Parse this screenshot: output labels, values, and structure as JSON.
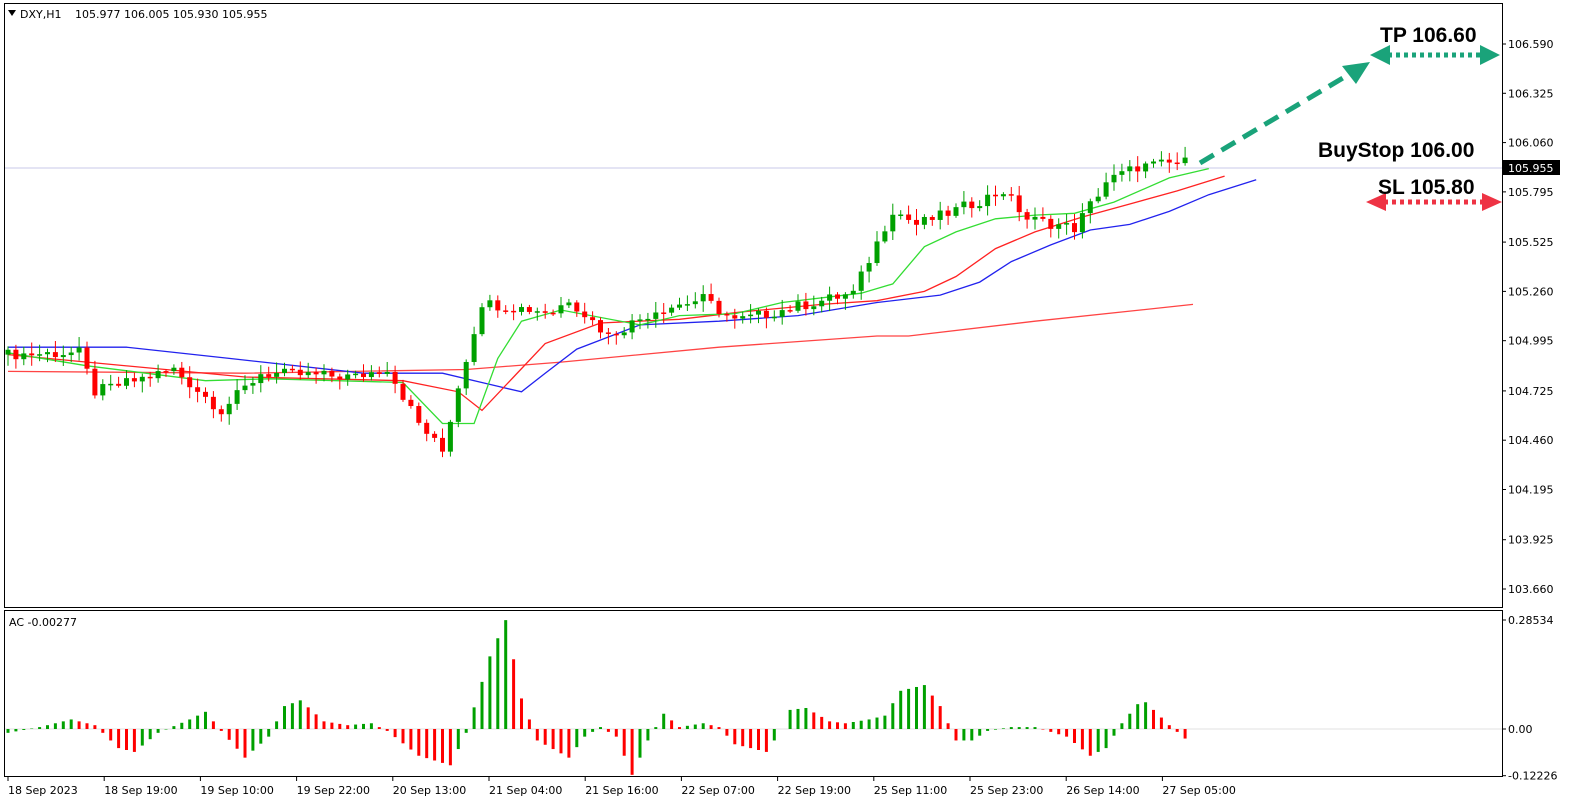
{
  "header": {
    "symbol": "DXY,H1",
    "ohlc": "105.977 106.005 105.930 105.955"
  },
  "current_price": "105.955",
  "annotations": {
    "tp": "TP 106.60",
    "buystop": "BuyStop 106.00",
    "sl": "SL 105.80"
  },
  "colors": {
    "bull": "#00a000",
    "bear": "#ff0000",
    "ma_fast": "#33dd33",
    "ma_mid": "#ff2222",
    "ma_slow": "#2222ee",
    "ma_long": "#ff4444",
    "tp_arrow": "#1aa37a",
    "sl_arrow": "#ee3344"
  },
  "chart_data": [
    {
      "type": "candlestick",
      "title": "DXY,H1",
      "y_ticks": [
        "106.590",
        "106.325",
        "106.060",
        "105.795",
        "105.525",
        "105.260",
        "104.995",
        "104.725",
        "104.460",
        "104.195",
        "103.925",
        "103.660"
      ],
      "ylim": [
        103.56,
        106.78
      ],
      "x_ticks": [
        "18 Sep 2023",
        "18 Sep 19:00",
        "19 Sep 10:00",
        "19 Sep 22:00",
        "20 Sep 13:00",
        "21 Sep 04:00",
        "21 Sep 16:00",
        "22 Sep 07:00",
        "22 Sep 19:00",
        "25 Sep 11:00",
        "25 Sep 23:00",
        "26 Sep 14:00",
        "27 Sep 05:00"
      ],
      "bar_count": 150,
      "close_path": [
        [
          0,
          104.92
        ],
        [
          10,
          104.93
        ],
        [
          12,
          104.72
        ],
        [
          22,
          104.84
        ],
        [
          28,
          104.62
        ],
        [
          33,
          104.82
        ],
        [
          45,
          104.8
        ],
        [
          49,
          104.85
        ],
        [
          53,
          104.55
        ],
        [
          56,
          104.4
        ],
        [
          58,
          104.75
        ],
        [
          61,
          105.2
        ],
        [
          64,
          105.18
        ],
        [
          70,
          105.15
        ],
        [
          72,
          105.22
        ],
        [
          77,
          105.02
        ],
        [
          83,
          105.16
        ],
        [
          89,
          105.22
        ],
        [
          93,
          105.1
        ],
        [
          97,
          105.14
        ],
        [
          103,
          105.2
        ],
        [
          108,
          105.25
        ],
        [
          113,
          105.7
        ],
        [
          116,
          105.62
        ],
        [
          120,
          105.68
        ],
        [
          127,
          105.8
        ],
        [
          130,
          105.65
        ],
        [
          136,
          105.6
        ],
        [
          140,
          105.85
        ],
        [
          144,
          105.93
        ],
        [
          150,
          105.955
        ]
      ],
      "ma_fast": [
        [
          0,
          104.93
        ],
        [
          10,
          104.86
        ],
        [
          25,
          104.78
        ],
        [
          33,
          104.79
        ],
        [
          50,
          104.77
        ],
        [
          55,
          104.55
        ],
        [
          59,
          104.55
        ],
        [
          62,
          104.9
        ],
        [
          65,
          105.1
        ],
        [
          70,
          105.16
        ],
        [
          80,
          105.08
        ],
        [
          85,
          105.13
        ],
        [
          92,
          105.14
        ],
        [
          98,
          105.2
        ],
        [
          108,
          105.25
        ],
        [
          112,
          105.3
        ],
        [
          116,
          105.5
        ],
        [
          120,
          105.58
        ],
        [
          125,
          105.65
        ],
        [
          130,
          105.67
        ],
        [
          135,
          105.68
        ],
        [
          140,
          105.74
        ],
        [
          147,
          105.87
        ],
        [
          152,
          105.92
        ]
      ],
      "ma_mid": [
        [
          0,
          104.92
        ],
        [
          10,
          104.88
        ],
        [
          30,
          104.8
        ],
        [
          50,
          104.78
        ],
        [
          57,
          104.72
        ],
        [
          60,
          104.62
        ],
        [
          64,
          104.8
        ],
        [
          68,
          104.98
        ],
        [
          75,
          105.09
        ],
        [
          85,
          105.11
        ],
        [
          93,
          105.15
        ],
        [
          103,
          105.19
        ],
        [
          110,
          105.21
        ],
        [
          116,
          105.26
        ],
        [
          120,
          105.34
        ],
        [
          125,
          105.49
        ],
        [
          130,
          105.58
        ],
        [
          136,
          105.66
        ],
        [
          142,
          105.73
        ],
        [
          148,
          105.8
        ],
        [
          154,
          105.88
        ]
      ],
      "ma_slow": [
        [
          0,
          104.96
        ],
        [
          15,
          104.96
        ],
        [
          28,
          104.9
        ],
        [
          45,
          104.82
        ],
        [
          55,
          104.82
        ],
        [
          62,
          104.75
        ],
        [
          65,
          104.72
        ],
        [
          68,
          104.82
        ],
        [
          72,
          104.95
        ],
        [
          80,
          105.08
        ],
        [
          90,
          105.1
        ],
        [
          100,
          105.13
        ],
        [
          110,
          105.2
        ],
        [
          118,
          105.24
        ],
        [
          123,
          105.31
        ],
        [
          127,
          105.42
        ],
        [
          132,
          105.51
        ],
        [
          137,
          105.59
        ],
        [
          142,
          105.62
        ],
        [
          147,
          105.69
        ],
        [
          152,
          105.78
        ],
        [
          158,
          105.86
        ]
      ],
      "ma_long": [
        [
          0,
          104.83
        ],
        [
          30,
          104.82
        ],
        [
          58,
          104.84
        ],
        [
          70,
          104.88
        ],
        [
          90,
          104.96
        ],
        [
          110,
          105.02
        ],
        [
          114,
          105.02
        ],
        [
          130,
          105.1
        ],
        [
          150,
          105.19
        ]
      ]
    },
    {
      "type": "bar",
      "title": "AC -0.00277",
      "y_ticks": [
        "0.28534",
        "0.00",
        "-0.12226"
      ],
      "ylim": [
        -0.13,
        0.3
      ],
      "bar_count": 150,
      "value_path": [
        [
          0,
          -0.01
        ],
        [
          4,
          0.005
        ],
        [
          8,
          0.025
        ],
        [
          11,
          0.01
        ],
        [
          14,
          -0.05
        ],
        [
          16,
          -0.06
        ],
        [
          19,
          -0.01
        ],
        [
          23,
          0.025
        ],
        [
          25,
          0.045
        ],
        [
          27,
          -0.005
        ],
        [
          30,
          -0.075
        ],
        [
          33,
          -0.02
        ],
        [
          35,
          0.06
        ],
        [
          37,
          0.075
        ],
        [
          40,
          0.02
        ],
        [
          43,
          0.01
        ],
        [
          46,
          0.015
        ],
        [
          48,
          -0.005
        ],
        [
          52,
          -0.07
        ],
        [
          56,
          -0.095
        ],
        [
          58,
          -0.01
        ],
        [
          61,
          0.19
        ],
        [
          63,
          0.285
        ],
        [
          65,
          0.08
        ],
        [
          67,
          -0.03
        ],
        [
          71,
          -0.075
        ],
        [
          73,
          -0.02
        ],
        [
          75,
          0.005
        ],
        [
          77,
          -0.02
        ],
        [
          79,
          -0.12
        ],
        [
          81,
          -0.03
        ],
        [
          83,
          0.04
        ],
        [
          85,
          0.005
        ],
        [
          88,
          0.015
        ],
        [
          90,
          0.005
        ],
        [
          92,
          -0.04
        ],
        [
          96,
          -0.06
        ],
        [
          98,
          0.0
        ],
        [
          99,
          0.05
        ],
        [
          101,
          0.055
        ],
        [
          104,
          0.02
        ],
        [
          106,
          0.015
        ],
        [
          109,
          0.025
        ],
        [
          111,
          0.035
        ],
        [
          113,
          0.1
        ],
        [
          116,
          0.115
        ],
        [
          118,
          0.06
        ],
        [
          120,
          -0.03
        ],
        [
          122,
          -0.03
        ],
        [
          124,
          -0.005
        ],
        [
          127,
          0.005
        ],
        [
          130,
          0.005
        ],
        [
          134,
          -0.02
        ],
        [
          137,
          -0.07
        ],
        [
          139,
          -0.05
        ],
        [
          141,
          0.015
        ],
        [
          143,
          0.065
        ],
        [
          144,
          0.07
        ],
        [
          147,
          0.01
        ],
        [
          149,
          -0.025
        ],
        [
          150,
          0.0
        ]
      ]
    }
  ]
}
